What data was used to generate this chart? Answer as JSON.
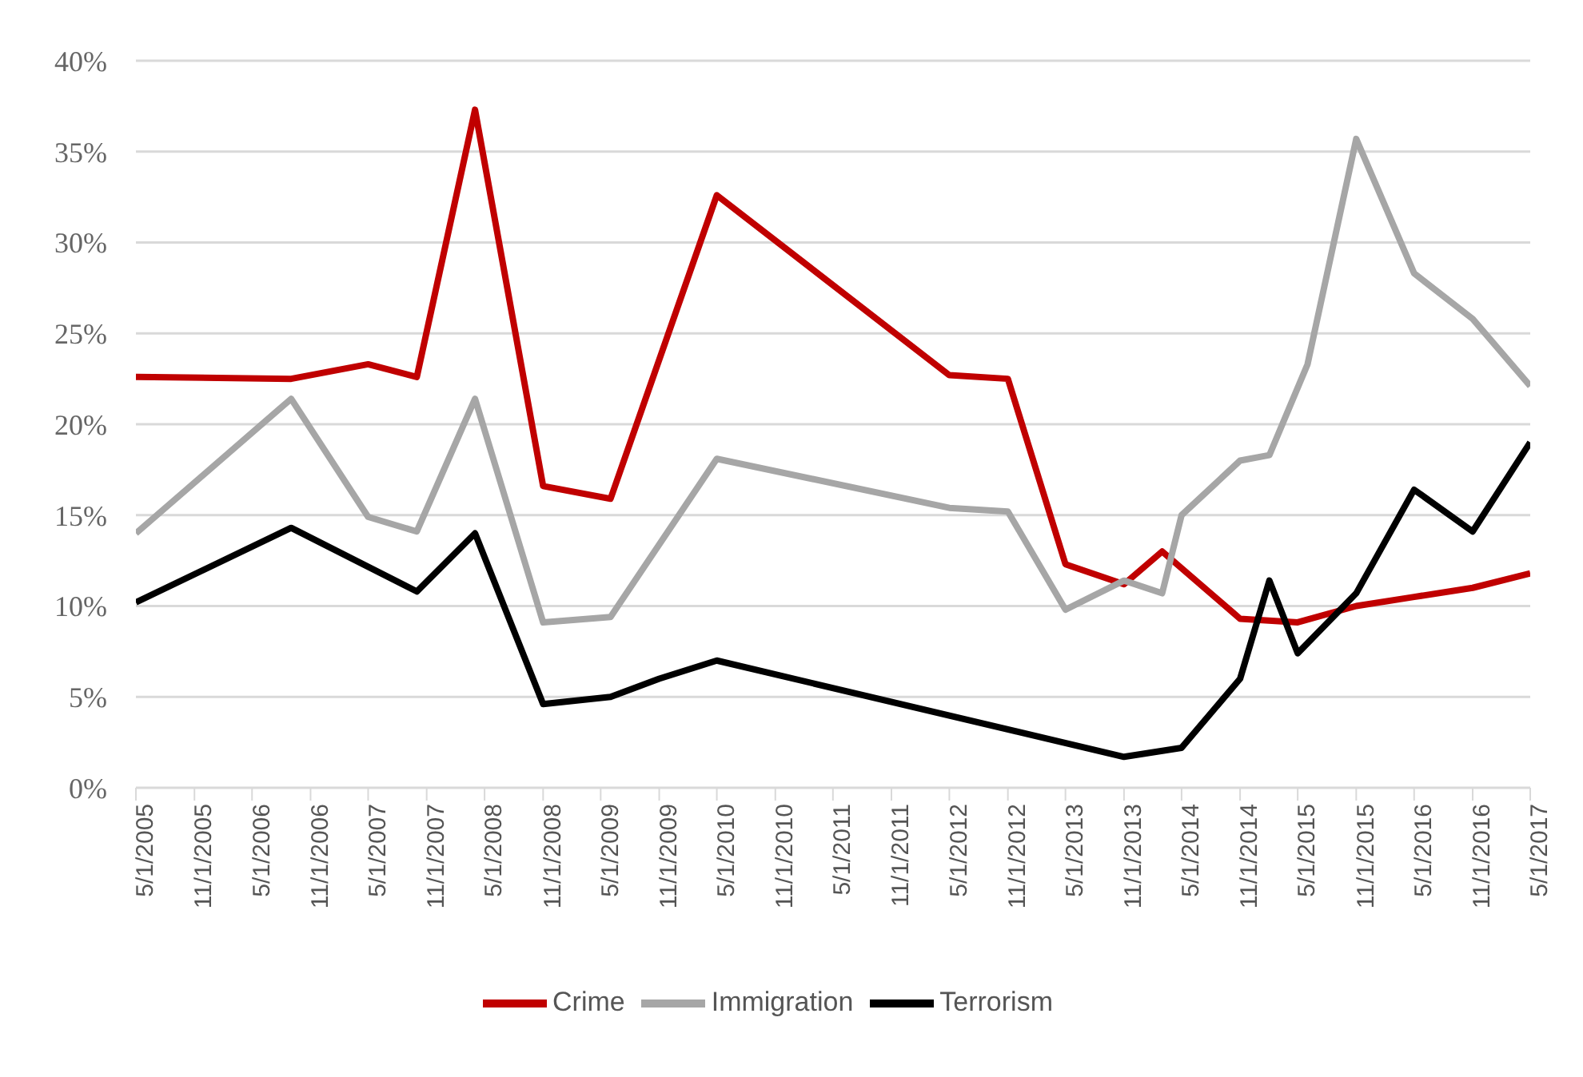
{
  "chart_data": {
    "type": "line",
    "xlim": [
      "2005-05-01",
      "2017-05-01"
    ],
    "xticks": [
      {
        "value": "2005-05-01",
        "label": "5/1/2005"
      },
      {
        "value": "2005-11-01",
        "label": "11/1/2005"
      },
      {
        "value": "2006-05-01",
        "label": "5/1/2006"
      },
      {
        "value": "2006-11-01",
        "label": "11/1/2006"
      },
      {
        "value": "2007-05-01",
        "label": "5/1/2007"
      },
      {
        "value": "2007-11-01",
        "label": "11/1/2007"
      },
      {
        "value": "2008-05-01",
        "label": "5/1/2008"
      },
      {
        "value": "2008-11-01",
        "label": "11/1/2008"
      },
      {
        "value": "2009-05-01",
        "label": "5/1/2009"
      },
      {
        "value": "2009-11-01",
        "label": "11/1/2009"
      },
      {
        "value": "2010-05-01",
        "label": "5/1/2010"
      },
      {
        "value": "2010-11-01",
        "label": "11/1/2010"
      },
      {
        "value": "2011-05-01",
        "label": "5/1/2011"
      },
      {
        "value": "2011-11-01",
        "label": "11/1/2011"
      },
      {
        "value": "2012-05-01",
        "label": "5/1/2012"
      },
      {
        "value": "2012-11-01",
        "label": "11/1/2012"
      },
      {
        "value": "2013-05-01",
        "label": "5/1/2013"
      },
      {
        "value": "2013-11-01",
        "label": "11/1/2013"
      },
      {
        "value": "2014-05-01",
        "label": "5/1/2014"
      },
      {
        "value": "2014-11-01",
        "label": "11/1/2014"
      },
      {
        "value": "2015-05-01",
        "label": "5/1/2015"
      },
      {
        "value": "2015-11-01",
        "label": "11/1/2015"
      },
      {
        "value": "2016-05-01",
        "label": "5/1/2016"
      },
      {
        "value": "2016-11-01",
        "label": "11/1/2016"
      },
      {
        "value": "2017-05-01",
        "label": "5/1/2017"
      }
    ],
    "ylim": [
      0,
      40
    ],
    "yticks": [
      {
        "value": 0,
        "label": "0%"
      },
      {
        "value": 5,
        "label": "5%"
      },
      {
        "value": 10,
        "label": "10%"
      },
      {
        "value": 15,
        "label": "15%"
      },
      {
        "value": 20,
        "label": "20%"
      },
      {
        "value": 25,
        "label": "25%"
      },
      {
        "value": 30,
        "label": "30%"
      },
      {
        "value": 35,
        "label": "35%"
      },
      {
        "value": 40,
        "label": "40%"
      }
    ],
    "grid": "y",
    "legend": "bottom",
    "marker": "none",
    "line_style": "solid",
    "series": [
      {
        "name": "Crime",
        "color": "#c00000",
        "x": [
          "2005-05-01",
          "2006-09-01",
          "2007-05-01",
          "2007-10-01",
          "2008-04-01",
          "2008-11-01",
          "2009-06-01",
          "2010-05-01",
          "2012-05-01",
          "2012-11-01",
          "2013-05-01",
          "2013-11-01",
          "2014-03-01",
          "2014-11-01",
          "2015-05-01",
          "2015-11-01",
          "2016-05-01",
          "2016-11-01",
          "2017-05-01"
        ],
        "values": [
          22.6,
          22.5,
          23.3,
          22.6,
          37.3,
          16.6,
          15.9,
          32.6,
          22.7,
          22.5,
          12.3,
          11.2,
          13.0,
          9.3,
          9.1,
          10.0,
          10.5,
          11.0,
          11.8
        ]
      },
      {
        "name": "Immigration",
        "color": "#a6a6a6",
        "x": [
          "2005-05-01",
          "2006-09-01",
          "2007-05-01",
          "2007-10-01",
          "2008-04-01",
          "2008-11-01",
          "2009-06-01",
          "2010-05-01",
          "2012-05-01",
          "2012-11-01",
          "2013-05-01",
          "2013-11-01",
          "2014-03-01",
          "2014-05-01",
          "2014-11-01",
          "2015-02-01",
          "2015-06-01",
          "2015-11-01",
          "2016-05-01",
          "2016-11-01",
          "2017-05-01"
        ],
        "values": [
          14.0,
          21.4,
          14.9,
          14.1,
          21.4,
          9.1,
          9.4,
          18.1,
          15.4,
          15.2,
          9.8,
          11.4,
          10.7,
          15.0,
          18.0,
          18.3,
          23.3,
          35.7,
          28.3,
          25.8,
          22.1
        ]
      },
      {
        "name": "Terrorism",
        "color": "#000000",
        "x": [
          "2005-05-01",
          "2006-09-01",
          "2007-10-01",
          "2008-04-01",
          "2008-11-01",
          "2009-06-01",
          "2009-11-01",
          "2010-05-01",
          "2013-11-01",
          "2014-05-01",
          "2014-11-01",
          "2015-02-01",
          "2015-05-01",
          "2015-11-01",
          "2016-05-01",
          "2016-11-01",
          "2017-05-01"
        ],
        "values": [
          10.2,
          14.3,
          10.8,
          14.0,
          4.6,
          5.0,
          6.0,
          7.0,
          1.7,
          2.2,
          6.0,
          11.4,
          7.4,
          10.7,
          16.4,
          14.1,
          19.0
        ]
      }
    ]
  }
}
